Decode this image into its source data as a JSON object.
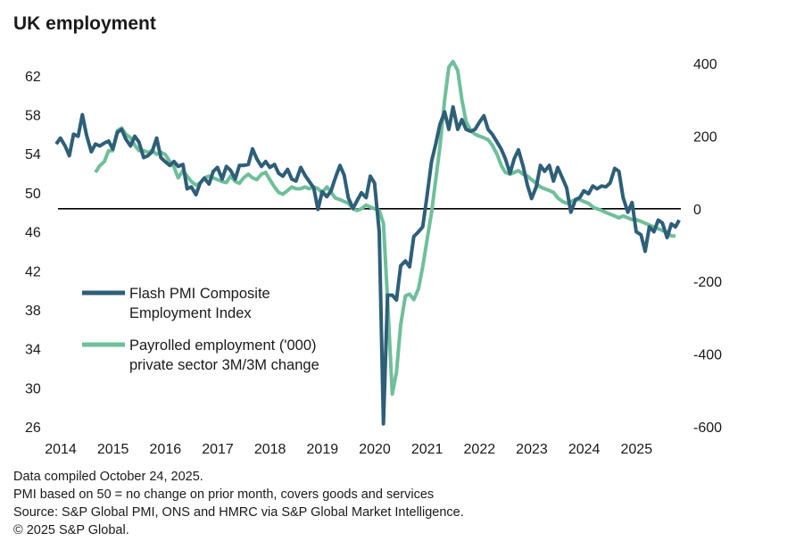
{
  "title": "UK employment",
  "footer": {
    "line1": "Data compiled October 24, 2025.",
    "line2": "PMI based on 50 = no change on prior month, covers goods and services",
    "line3": "Source: S&P Global PMI, ONS and HMRC via S&P Global Market Intelligence.",
    "line4": "© 2025 S&P Global."
  },
  "colors": {
    "pmi": "#2e5f78",
    "payroll": "#6fbf9a",
    "axis": "#000000"
  },
  "chart_data": {
    "type": "line",
    "title": "UK employment",
    "x_ticks": [
      "2014",
      "2015",
      "2016",
      "2017",
      "2018",
      "2019",
      "2020",
      "2021",
      "2022",
      "2023",
      "2024",
      "2025"
    ],
    "x_range": [
      2014.0,
      2025.83
    ],
    "y_left": {
      "ticks": [
        62,
        58,
        54,
        50,
        46,
        42,
        38,
        34,
        30,
        26
      ],
      "range": [
        26,
        64
      ]
    },
    "y_right": {
      "ticks": [
        400,
        200,
        0,
        -200,
        -400,
        -600
      ],
      "range": [
        -600,
        400
      ]
    },
    "reference_line": {
      "axis": "right",
      "value": 0
    },
    "legend": [
      {
        "label_line1": "Flash PMI Composite",
        "label_line2": "Employment Index",
        "series": "pmi"
      },
      {
        "label_line1": "Payrolled employment ('000)",
        "label_line2": "private sector 3M/3M change",
        "series": "payroll"
      }
    ],
    "series": [
      {
        "name": "Flash PMI Composite Employment Index",
        "axis": "left",
        "points": [
          [
            2014.0,
            55.0
          ],
          [
            2014.08,
            55.6
          ],
          [
            2014.17,
            54.8
          ],
          [
            2014.25,
            53.8
          ],
          [
            2014.33,
            56.0
          ],
          [
            2014.42,
            55.8
          ],
          [
            2014.5,
            58.0
          ],
          [
            2014.58,
            55.9
          ],
          [
            2014.67,
            54.2
          ],
          [
            2014.75,
            55.0
          ],
          [
            2014.83,
            54.8
          ],
          [
            2014.92,
            55.1
          ],
          [
            2015.0,
            55.3
          ],
          [
            2015.08,
            54.5
          ],
          [
            2015.17,
            56.2
          ],
          [
            2015.25,
            56.5
          ],
          [
            2015.33,
            55.5
          ],
          [
            2015.42,
            54.8
          ],
          [
            2015.5,
            55.8
          ],
          [
            2015.58,
            55.2
          ],
          [
            2015.67,
            53.6
          ],
          [
            2015.75,
            53.8
          ],
          [
            2015.83,
            54.2
          ],
          [
            2015.92,
            55.6
          ],
          [
            2016.0,
            53.6
          ],
          [
            2016.08,
            53.2
          ],
          [
            2016.17,
            52.8
          ],
          [
            2016.25,
            53.2
          ],
          [
            2016.33,
            52.7
          ],
          [
            2016.42,
            52.9
          ],
          [
            2016.5,
            50.4
          ],
          [
            2016.58,
            50.6
          ],
          [
            2016.67,
            49.8
          ],
          [
            2016.75,
            51.0
          ],
          [
            2016.83,
            51.5
          ],
          [
            2016.92,
            50.9
          ],
          [
            2017.0,
            52.2
          ],
          [
            2017.08,
            52.6
          ],
          [
            2017.17,
            51.4
          ],
          [
            2017.25,
            52.7
          ],
          [
            2017.33,
            52.3
          ],
          [
            2017.42,
            51.4
          ],
          [
            2017.5,
            52.8
          ],
          [
            2017.58,
            52.8
          ],
          [
            2017.67,
            52.9
          ],
          [
            2017.75,
            54.5
          ],
          [
            2017.83,
            53.5
          ],
          [
            2017.92,
            52.7
          ],
          [
            2018.0,
            53.2
          ],
          [
            2018.08,
            52.6
          ],
          [
            2018.17,
            52.9
          ],
          [
            2018.25,
            52.0
          ],
          [
            2018.33,
            51.7
          ],
          [
            2018.42,
            52.4
          ],
          [
            2018.5,
            51.4
          ],
          [
            2018.58,
            51.2
          ],
          [
            2018.67,
            52.6
          ],
          [
            2018.75,
            51.8
          ],
          [
            2018.83,
            51.2
          ],
          [
            2018.92,
            50.5
          ],
          [
            2019.0,
            48.3
          ],
          [
            2019.08,
            50.1
          ],
          [
            2019.17,
            49.6
          ],
          [
            2019.25,
            50.2
          ],
          [
            2019.33,
            51.5
          ],
          [
            2019.42,
            52.8
          ],
          [
            2019.5,
            51.8
          ],
          [
            2019.58,
            49.5
          ],
          [
            2019.67,
            48.4
          ],
          [
            2019.75,
            49.2
          ],
          [
            2019.83,
            50.0
          ],
          [
            2019.92,
            49.5
          ],
          [
            2020.0,
            51.7
          ],
          [
            2020.08,
            51.0
          ],
          [
            2020.17,
            46.0
          ],
          [
            2020.25,
            26.3
          ],
          [
            2020.33,
            39.5
          ],
          [
            2020.42,
            39.5
          ],
          [
            2020.5,
            39.0
          ],
          [
            2020.58,
            42.5
          ],
          [
            2020.67,
            43.0
          ],
          [
            2020.75,
            42.4
          ],
          [
            2020.83,
            45.5
          ],
          [
            2020.92,
            46.0
          ],
          [
            2021.0,
            46.5
          ],
          [
            2021.08,
            49.5
          ],
          [
            2021.17,
            53.2
          ],
          [
            2021.25,
            55.0
          ],
          [
            2021.33,
            57.0
          ],
          [
            2021.42,
            58.3
          ],
          [
            2021.5,
            56.5
          ],
          [
            2021.58,
            58.8
          ],
          [
            2021.67,
            56.5
          ],
          [
            2021.75,
            57.5
          ],
          [
            2021.83,
            56.5
          ],
          [
            2021.92,
            56.3
          ],
          [
            2022.0,
            56.5
          ],
          [
            2022.08,
            57.2
          ],
          [
            2022.17,
            57.9
          ],
          [
            2022.25,
            56.5
          ],
          [
            2022.33,
            56.0
          ],
          [
            2022.42,
            55.2
          ],
          [
            2022.5,
            54.5
          ],
          [
            2022.58,
            53.5
          ],
          [
            2022.67,
            52.0
          ],
          [
            2022.75,
            53.5
          ],
          [
            2022.83,
            54.4
          ],
          [
            2022.92,
            52.7
          ],
          [
            2023.0,
            50.8
          ],
          [
            2023.08,
            49.4
          ],
          [
            2023.17,
            50.6
          ],
          [
            2023.25,
            52.8
          ],
          [
            2023.33,
            52.2
          ],
          [
            2023.42,
            52.8
          ],
          [
            2023.5,
            51.2
          ],
          [
            2023.58,
            52.6
          ],
          [
            2023.67,
            51.5
          ],
          [
            2023.75,
            50.5
          ],
          [
            2023.83,
            48.0
          ],
          [
            2023.92,
            49.3
          ],
          [
            2024.0,
            49.5
          ],
          [
            2024.08,
            50.2
          ],
          [
            2024.17,
            49.9
          ],
          [
            2024.25,
            50.7
          ],
          [
            2024.33,
            50.4
          ],
          [
            2024.42,
            50.7
          ],
          [
            2024.5,
            50.6
          ],
          [
            2024.58,
            51.0
          ],
          [
            2024.67,
            52.5
          ],
          [
            2024.75,
            52.2
          ],
          [
            2024.83,
            49.5
          ],
          [
            2024.92,
            48.0
          ],
          [
            2025.0,
            49.0
          ],
          [
            2025.08,
            46.0
          ],
          [
            2025.17,
            45.7
          ],
          [
            2025.25,
            44.0
          ],
          [
            2025.33,
            46.5
          ],
          [
            2025.42,
            46.0
          ],
          [
            2025.5,
            47.2
          ],
          [
            2025.58,
            46.9
          ],
          [
            2025.67,
            45.4
          ],
          [
            2025.75,
            46.8
          ],
          [
            2025.83,
            46.5
          ],
          [
            2025.9,
            47.2
          ]
        ]
      },
      {
        "name": "Payrolled employment ('000) private sector 3M/3M change",
        "axis": "right",
        "points": [
          [
            2014.75,
            100
          ],
          [
            2014.83,
            118
          ],
          [
            2014.92,
            130
          ],
          [
            2015.0,
            160
          ],
          [
            2015.08,
            160
          ],
          [
            2015.17,
            215
          ],
          [
            2015.25,
            222
          ],
          [
            2015.33,
            205
          ],
          [
            2015.42,
            195
          ],
          [
            2015.5,
            175
          ],
          [
            2015.58,
            160
          ],
          [
            2015.67,
            160
          ],
          [
            2015.75,
            155
          ],
          [
            2015.83,
            160
          ],
          [
            2015.92,
            150
          ],
          [
            2016.0,
            155
          ],
          [
            2016.08,
            150
          ],
          [
            2016.17,
            130
          ],
          [
            2016.25,
            115
          ],
          [
            2016.33,
            85
          ],
          [
            2016.42,
            105
          ],
          [
            2016.5,
            90
          ],
          [
            2016.58,
            75
          ],
          [
            2016.67,
            65
          ],
          [
            2016.75,
            70
          ],
          [
            2016.83,
            85
          ],
          [
            2016.92,
            90
          ],
          [
            2017.0,
            85
          ],
          [
            2017.08,
            80
          ],
          [
            2017.17,
            75
          ],
          [
            2017.25,
            72
          ],
          [
            2017.33,
            90
          ],
          [
            2017.42,
            75
          ],
          [
            2017.5,
            70
          ],
          [
            2017.58,
            85
          ],
          [
            2017.67,
            95
          ],
          [
            2017.75,
            85
          ],
          [
            2017.83,
            80
          ],
          [
            2017.92,
            95
          ],
          [
            2018.0,
            100
          ],
          [
            2018.08,
            80
          ],
          [
            2018.17,
            60
          ],
          [
            2018.25,
            45
          ],
          [
            2018.33,
            40
          ],
          [
            2018.42,
            50
          ],
          [
            2018.5,
            60
          ],
          [
            2018.58,
            55
          ],
          [
            2018.67,
            55
          ],
          [
            2018.75,
            60
          ],
          [
            2018.83,
            55
          ],
          [
            2018.92,
            60
          ],
          [
            2019.0,
            55
          ],
          [
            2019.08,
            45
          ],
          [
            2019.17,
            60
          ],
          [
            2019.25,
            45
          ],
          [
            2019.33,
            30
          ],
          [
            2019.42,
            25
          ],
          [
            2019.5,
            20
          ],
          [
            2019.58,
            15
          ],
          [
            2019.67,
            0
          ],
          [
            2019.75,
            -5
          ],
          [
            2019.83,
            0
          ],
          [
            2019.92,
            10
          ],
          [
            2020.0,
            5
          ],
          [
            2020.08,
            0
          ],
          [
            2020.17,
            -5
          ],
          [
            2020.25,
            -40
          ],
          [
            2020.33,
            -250
          ],
          [
            2020.42,
            -510
          ],
          [
            2020.5,
            -450
          ],
          [
            2020.58,
            -320
          ],
          [
            2020.67,
            -240
          ],
          [
            2020.75,
            -235
          ],
          [
            2020.83,
            -250
          ],
          [
            2020.92,
            -220
          ],
          [
            2021.0,
            -160
          ],
          [
            2021.08,
            -90
          ],
          [
            2021.17,
            -10
          ],
          [
            2021.25,
            80
          ],
          [
            2021.33,
            170
          ],
          [
            2021.42,
            300
          ],
          [
            2021.5,
            390
          ],
          [
            2021.58,
            405
          ],
          [
            2021.67,
            380
          ],
          [
            2021.75,
            300
          ],
          [
            2021.83,
            240
          ],
          [
            2021.92,
            215
          ],
          [
            2022.0,
            205
          ],
          [
            2022.08,
            200
          ],
          [
            2022.17,
            195
          ],
          [
            2022.25,
            190
          ],
          [
            2022.33,
            175
          ],
          [
            2022.42,
            150
          ],
          [
            2022.5,
            120
          ],
          [
            2022.58,
            100
          ],
          [
            2022.67,
            95
          ],
          [
            2022.75,
            100
          ],
          [
            2022.83,
            105
          ],
          [
            2022.92,
            95
          ],
          [
            2023.0,
            90
          ],
          [
            2023.08,
            80
          ],
          [
            2023.17,
            70
          ],
          [
            2023.25,
            60
          ],
          [
            2023.33,
            55
          ],
          [
            2023.42,
            50
          ],
          [
            2023.5,
            45
          ],
          [
            2023.58,
            30
          ],
          [
            2023.67,
            20
          ],
          [
            2023.75,
            15
          ],
          [
            2023.83,
            20
          ],
          [
            2023.92,
            25
          ],
          [
            2024.0,
            25
          ],
          [
            2024.08,
            20
          ],
          [
            2024.17,
            15
          ],
          [
            2024.25,
            5
          ],
          [
            2024.33,
            0
          ],
          [
            2024.42,
            -5
          ],
          [
            2024.5,
            -10
          ],
          [
            2024.58,
            -15
          ],
          [
            2024.67,
            -20
          ],
          [
            2024.75,
            -25
          ],
          [
            2024.83,
            -20
          ],
          [
            2024.92,
            -25
          ],
          [
            2025.0,
            -30
          ],
          [
            2025.08,
            -30
          ],
          [
            2025.17,
            -35
          ],
          [
            2025.25,
            -40
          ],
          [
            2025.33,
            -45
          ],
          [
            2025.42,
            -50
          ],
          [
            2025.5,
            -55
          ],
          [
            2025.58,
            -60
          ],
          [
            2025.67,
            -65
          ],
          [
            2025.75,
            -75
          ],
          [
            2025.83,
            -75
          ]
        ]
      }
    ]
  }
}
